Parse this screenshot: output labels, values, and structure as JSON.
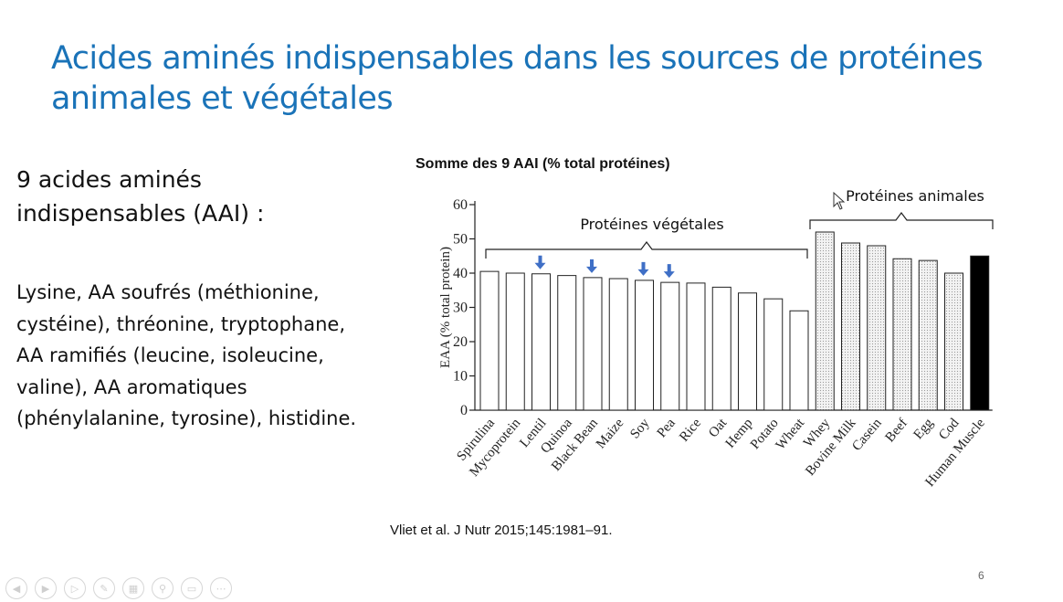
{
  "slide": {
    "title": "Acides aminés indispensables dans les sources de protéines animales et végétales",
    "left_heading": "9 acides aminés indispensables (AAI) :",
    "left_body": "Lysine, AA soufrés (méthionine, cystéine), thréonine, tryptophane, AA ramifiés (leucine, isoleucine, valine), AA aromatiques (phénylalanine, tyrosine), histidine.",
    "citation": "Vliet et al. J Nutr 2015;145:1981–91.",
    "page_number": "6"
  },
  "chart_data": {
    "type": "bar",
    "title": "Somme des 9 AAI (% total protéines)",
    "ylabel": "EAA (% total protein)",
    "xlabel": "",
    "ylim": [
      0,
      60
    ],
    "yticks": [
      0,
      10,
      20,
      30,
      40,
      50,
      60
    ],
    "categories": [
      "Spirulina",
      "Mycoprotein",
      "Lentil",
      "Quinoa",
      "Black Bean",
      "Maize",
      "Soy",
      "Pea",
      "Rice",
      "Oat",
      "Hemp",
      "Potato",
      "Wheat",
      "Whey",
      "Bovine Milk",
      "Casein",
      "Beef",
      "Egg",
      "Cod",
      "Human Muscle"
    ],
    "values": [
      40.5,
      40,
      39.8,
      39.3,
      38.7,
      38.4,
      37.9,
      37.3,
      37.1,
      35.9,
      34.2,
      32.5,
      29,
      52,
      48.8,
      48,
      44.2,
      43.7,
      40,
      45
    ],
    "groups": [
      {
        "name": "Protéines végétales",
        "categories": [
          "Spirulina",
          "Mycoprotein",
          "Lentil",
          "Quinoa",
          "Black Bean",
          "Maize",
          "Soy",
          "Pea",
          "Rice",
          "Oat",
          "Hemp",
          "Potato",
          "Wheat"
        ],
        "fill": "white"
      },
      {
        "name": "Protéines animales",
        "categories": [
          "Whey",
          "Bovine Milk",
          "Casein",
          "Beef",
          "Egg",
          "Cod"
        ],
        "fill": "dotted"
      },
      {
        "name": "",
        "categories": [
          "Human Muscle"
        ],
        "fill": "black"
      }
    ],
    "highlighted": [
      "Lentil",
      "Black Bean",
      "Soy",
      "Pea"
    ],
    "colors": {
      "arrow": "#3f6fc6",
      "bar_edge": "#222222",
      "solid": "#000000",
      "title_blue": "#1a73b8"
    }
  }
}
